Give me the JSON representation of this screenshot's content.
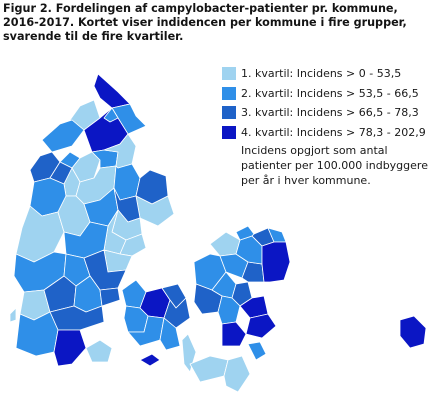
{
  "caption": {
    "line1": "Figur 2. Fordelingen af campylobacter-patienter pr. kommune,",
    "line2": "2016-2017. Kortet viser indidencen per kommune i fire grupper,",
    "line3": "svarende til de fire kvartiler."
  },
  "legend": {
    "items": [
      {
        "label": "1. kvartil: Incidens > 0 - 53,5",
        "color": "#9fd3f0"
      },
      {
        "label": "2. kvartil: Incidens > 53,5 - 66,5",
        "color": "#2f8fe8"
      },
      {
        "label": "3. kvartil: Incidens > 66,5 - 78,3",
        "color": "#1f62c8"
      },
      {
        "label": "4. kvartil: Incidens > 78,3 - 202,9",
        "color": "#0b16c4"
      }
    ],
    "note": {
      "line1": "Incidens opgjort som antal",
      "line2": "patienter per 100.000 indbyggere",
      "line3": "per år i hver kommune."
    }
  },
  "map_colors": {
    "q1": "#9fd3f0",
    "q2": "#2f8fe8",
    "q3": "#1f62c8",
    "q4": "#0b16c4",
    "border": "#ffffff"
  }
}
